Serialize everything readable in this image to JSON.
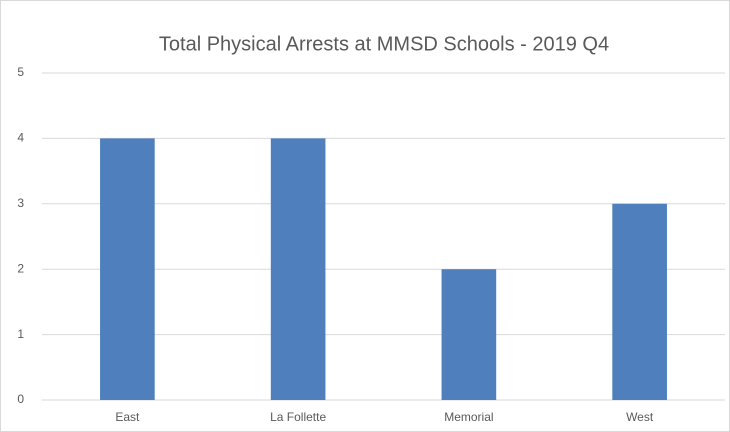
{
  "chart_data": {
    "type": "bar",
    "title": "Total Physical Arrests at MMSD Schools - 2019 Q4",
    "categories": [
      "East",
      "La Follette",
      "Memorial",
      "West"
    ],
    "values": [
      4,
      4,
      2,
      3
    ],
    "color": "#4f7fbd",
    "ylim": [
      0,
      5
    ],
    "yticks": [
      0,
      1,
      2,
      3,
      4,
      5
    ],
    "grid": true
  }
}
